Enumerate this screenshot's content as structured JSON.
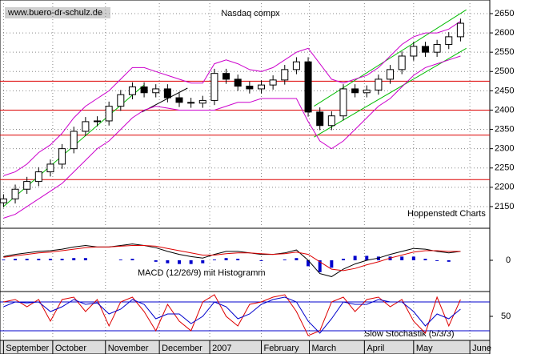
{
  "chart_data": [
    {
      "type": "candlestick",
      "title": "Nasdaq compx",
      "source": "www.buero-dr-schulz.de",
      "credit": "Hoppenstedt Charts",
      "x": [
        0,
        1,
        2,
        3,
        4,
        5,
        6,
        7,
        8,
        9,
        10,
        11,
        12,
        13,
        14,
        15,
        16,
        17,
        18,
        19,
        20,
        21,
        22,
        23,
        24,
        25,
        26,
        27,
        28,
        29,
        30,
        31,
        32,
        33,
        34,
        35,
        36,
        37,
        38,
        39
      ],
      "open": [
        2160,
        2170,
        2195,
        2215,
        2240,
        2260,
        2300,
        2345,
        2370,
        2372,
        2410,
        2440,
        2460,
        2445,
        2455,
        2432,
        2420,
        2418,
        2425,
        2495,
        2480,
        2462,
        2455,
        2465,
        2478,
        2505,
        2525,
        2395,
        2360,
        2385,
        2455,
        2445,
        2452,
        2480,
        2505,
        2540,
        2565,
        2550,
        2570,
        2590
      ],
      "high": [
        2182,
        2207,
        2227,
        2252,
        2272,
        2312,
        2357,
        2382,
        2384,
        2422,
        2452,
        2472,
        2472,
        2467,
        2467,
        2444,
        2432,
        2437,
        2507,
        2507,
        2492,
        2474,
        2477,
        2490,
        2517,
        2537,
        2537,
        2407,
        2397,
        2467,
        2467,
        2464,
        2492,
        2517,
        2552,
        2577,
        2577,
        2582,
        2602,
        2637
      ],
      "low": [
        2148,
        2158,
        2183,
        2203,
        2228,
        2248,
        2288,
        2333,
        2358,
        2360,
        2398,
        2428,
        2433,
        2433,
        2420,
        2408,
        2406,
        2406,
        2413,
        2468,
        2450,
        2443,
        2443,
        2453,
        2466,
        2493,
        2383,
        2348,
        2348,
        2373,
        2433,
        2433,
        2440,
        2468,
        2493,
        2528,
        2538,
        2538,
        2558,
        2578
      ],
      "close": [
        2170,
        2195,
        2215,
        2240,
        2260,
        2300,
        2345,
        2370,
        2372,
        2410,
        2440,
        2460,
        2445,
        2455,
        2432,
        2420,
        2418,
        2425,
        2495,
        2480,
        2462,
        2455,
        2465,
        2478,
        2505,
        2525,
        2395,
        2360,
        2385,
        2455,
        2445,
        2452,
        2480,
        2505,
        2540,
        2565,
        2550,
        2570,
        2590,
        2625
      ],
      "bands": [
        {
          "color": "#cc00cc",
          "values": [
            2230,
            2240,
            2260,
            2290,
            2310,
            2340,
            2380,
            2410,
            2430,
            2450,
            2480,
            2510,
            2510,
            2500,
            2490,
            2480,
            2470,
            2470,
            2520,
            2530,
            2520,
            2505,
            2500,
            2510,
            2530,
            2550,
            2560,
            2520,
            2480,
            2470,
            2480,
            2490,
            2510,
            2540,
            2570,
            2590,
            2600,
            2600,
            2610,
            2630
          ]
        },
        {
          "color": "#cc00cc",
          "values": [
            2120,
            2130,
            2150,
            2170,
            2190,
            2210,
            2240,
            2270,
            2300,
            2320,
            2350,
            2380,
            2400,
            2410,
            2405,
            2400,
            2400,
            2400,
            2400,
            2410,
            2420,
            2420,
            2430,
            2430,
            2430,
            2430,
            2370,
            2320,
            2300,
            2320,
            2350,
            2380,
            2410,
            2430,
            2460,
            2490,
            2510,
            2520,
            2530,
            2540
          ]
        }
      ],
      "horizontal_lines": [
        2475,
        2400,
        2335,
        2220
      ],
      "horizontal_color": "#dd0000",
      "trend_lines": [
        {
          "color": "#00bb00",
          "x": [
            0,
            12
          ],
          "y": [
            2150,
            2465
          ]
        },
        {
          "color": "#000000",
          "x": [
            11.8,
            15.7
          ],
          "y": [
            2395,
            2457
          ]
        },
        {
          "color": "#00bb00",
          "x": [
            26.5,
            39.5
          ],
          "y": [
            2330,
            2560
          ]
        },
        {
          "color": "#00bb00",
          "x": [
            26.5,
            39.5
          ],
          "y": [
            2410,
            2660
          ]
        }
      ],
      "xlim": [
        -0.3,
        41.5
      ],
      "xticks": [
        {
          "value": 0,
          "label": "September"
        },
        {
          "value": 4.2,
          "label": "October"
        },
        {
          "value": 8.7,
          "label": "November"
        },
        {
          "value": 13.3,
          "label": "December"
        },
        {
          "value": 17.6,
          "label": "2007"
        },
        {
          "value": 22,
          "label": "February"
        },
        {
          "value": 26.1,
          "label": "March"
        },
        {
          "value": 30.8,
          "label": "April"
        },
        {
          "value": 35,
          "label": "May"
        },
        {
          "value": 39.8,
          "label": "June"
        }
      ],
      "ylim": [
        2098,
        2679
      ],
      "yticks": [
        2150,
        2200,
        2250,
        2300,
        2350,
        2400,
        2450,
        2500,
        2550,
        2600,
        2650
      ],
      "grid": true
    },
    {
      "type": "macd",
      "title": "MACD (12/26/9) mit Histogramm",
      "ylim": [
        -40,
        40
      ],
      "yticks": [
        0
      ],
      "series": [
        {
          "color": "#000000",
          "values": [
            5,
            8,
            10,
            12,
            13,
            15,
            18,
            20,
            18,
            18,
            20,
            22,
            20,
            17,
            12,
            8,
            5,
            3,
            8,
            12,
            12,
            10,
            8,
            8,
            10,
            14,
            0,
            -18,
            -22,
            -12,
            -5,
            0,
            3,
            8,
            12,
            16,
            15,
            12,
            10,
            12
          ]
        },
        {
          "color": "#dd0000",
          "values": [
            4,
            6,
            8,
            10,
            11,
            13,
            15,
            17,
            18,
            18,
            19,
            20,
            20,
            19,
            16,
            13,
            10,
            7,
            7,
            9,
            10,
            10,
            9,
            8,
            9,
            11,
            8,
            -2,
            -12,
            -14,
            -11,
            -6,
            -2,
            3,
            7,
            11,
            13,
            13,
            12,
            12
          ]
        }
      ],
      "histogram": {
        "color": "#0000cc",
        "values": [
          1,
          2,
          2,
          2,
          2,
          2,
          3,
          3,
          0,
          0,
          1,
          2,
          0,
          -2,
          -4,
          -5,
          -5,
          -4,
          1,
          3,
          2,
          0,
          -1,
          0,
          1,
          3,
          -8,
          -16,
          -10,
          2,
          6,
          6,
          5,
          5,
          5,
          5,
          2,
          -1,
          -2,
          0
        ]
      }
    },
    {
      "type": "stochastic",
      "title": "Slow Stochastik (5/3/3)",
      "ylim": [
        0,
        100
      ],
      "yticks": [
        50
      ],
      "levels": [
        20,
        80
      ],
      "level_color": "#0000cc",
      "series": [
        {
          "color": "#dd0000",
          "values": [
            80,
            85,
            70,
            85,
            40,
            85,
            90,
            60,
            85,
            30,
            80,
            90,
            60,
            20,
            75,
            40,
            20,
            80,
            95,
            50,
            30,
            75,
            80,
            90,
            95,
            60,
            10,
            20,
            80,
            90,
            60,
            85,
            90,
            70,
            85,
            40,
            15,
            90,
            30,
            85
          ]
        },
        {
          "color": "#0000cc",
          "values": [
            70,
            80,
            78,
            80,
            60,
            70,
            85,
            75,
            78,
            55,
            65,
            85,
            75,
            45,
            55,
            55,
            35,
            50,
            80,
            70,
            45,
            55,
            75,
            85,
            90,
            80,
            40,
            15,
            45,
            80,
            75,
            75,
            85,
            80,
            80,
            60,
            30,
            55,
            45,
            65
          ]
        }
      ]
    }
  ]
}
